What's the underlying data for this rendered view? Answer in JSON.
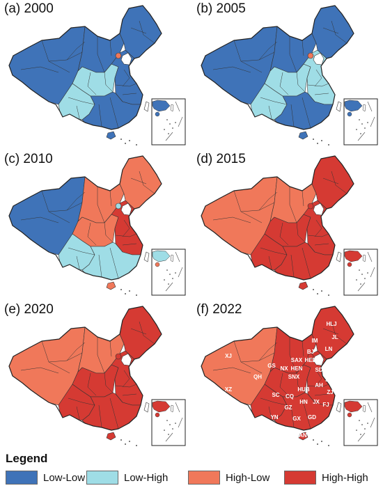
{
  "colors": {
    "low_low": "#3f73b8",
    "low_high": "#9fdde6",
    "high_low": "#f0785a",
    "high_high": "#d53a33"
  },
  "panels": [
    {
      "label": "(a) 2000",
      "base": "low_low",
      "regions": {
        "west": "low_low",
        "north": "low_low",
        "northeast": "low_low",
        "center": "low_high",
        "east": "low_low",
        "southwest": "low_high",
        "south": "low_low",
        "beijing": "high_low",
        "hainan": "low_low",
        "inset": "low_low"
      }
    },
    {
      "label": "(b) 2005",
      "base": "low_low",
      "regions": {
        "west": "low_low",
        "north": "low_low",
        "northeast": "low_low",
        "center": "low_high",
        "east": "low_high",
        "southwest": "low_high",
        "south": "low_low",
        "beijing": "high_low",
        "hainan": "low_low",
        "inset": "low_low"
      }
    },
    {
      "label": "(c) 2010",
      "base": "low_low",
      "regions": {
        "west": "low_low",
        "north": "high_low",
        "northeast": "high_low",
        "center": "high_low",
        "east": "high_high",
        "southwest": "low_high",
        "south": "low_high",
        "beijing": "low_high",
        "hainan": "high_low",
        "inset": "low_high"
      }
    },
    {
      "label": "(d) 2015",
      "base": "high_low",
      "regions": {
        "west": "high_low",
        "north": "high_low",
        "northeast": "high_high",
        "center": "high_high",
        "east": "high_high",
        "southwest": "high_high",
        "south": "high_high",
        "beijing": "high_high",
        "hainan": "high_high",
        "inset": "high_high"
      }
    },
    {
      "label": "(e) 2020",
      "base": "high_low",
      "regions": {
        "west": "high_low",
        "north": "high_low",
        "northeast": "high_high",
        "center": "high_high",
        "east": "high_high",
        "southwest": "high_high",
        "south": "high_high",
        "beijing": "high_high",
        "hainan": "high_high",
        "inset": "high_high"
      }
    },
    {
      "label": "(f) 2022",
      "base": "high_low",
      "regions": {
        "west": "high_low",
        "north": "high_high",
        "northeast": "high_high",
        "center": "high_high",
        "east": "high_high",
        "southwest": "high_high",
        "south": "high_high",
        "beijing": "high_high",
        "hainan": "high_high",
        "inset": "high_high"
      }
    }
  ],
  "province_labels": [
    "HLJ",
    "JL",
    "LN",
    "IM",
    "BJ",
    "HEB",
    "SAX",
    "SD",
    "GS",
    "NX",
    "HEN",
    "SNX",
    "JS",
    "XJ",
    "QH",
    "AH",
    "HUB",
    "ZJ",
    "XZ",
    "SC",
    "CQ",
    "HN",
    "JX",
    "FJ",
    "GZ",
    "YN",
    "GX",
    "GD",
    "HAN"
  ],
  "legend": {
    "title": "Legend",
    "items": [
      {
        "key": "low_low",
        "label": "Low-Low"
      },
      {
        "key": "low_high",
        "label": "Low-High"
      },
      {
        "key": "high_low",
        "label": "High-Low"
      },
      {
        "key": "high_high",
        "label": "High-High"
      }
    ]
  }
}
